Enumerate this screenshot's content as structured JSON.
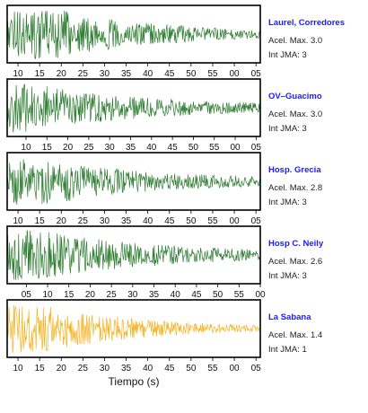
{
  "chart_data": [
    {
      "type": "line",
      "station": "Laurel, Corredores",
      "peak_label": "Acel. Max. 3.0",
      "jma_label": "Int JMA: 3",
      "color": "#2e7d32",
      "ticks": [
        "10",
        "15",
        "20",
        "25",
        "30",
        "35",
        "40",
        "45",
        "50",
        "55",
        "00",
        "05"
      ],
      "tick_values": [
        10,
        15,
        20,
        25,
        30,
        35,
        40,
        45,
        50,
        55,
        60,
        65
      ],
      "xlim": [
        7.5,
        66
      ],
      "amp_decay": [
        1.0,
        0.9,
        0.55,
        0.32,
        0.18
      ]
    },
    {
      "type": "line",
      "station": "OV–Guacimo",
      "peak_label": "Acel. Max. 3.0",
      "jma_label": "Int JMA: 3",
      "color": "#2e7d32",
      "ticks": [
        "10",
        "15",
        "20",
        "25",
        "30",
        "35",
        "40",
        "45",
        "50",
        "55",
        "00",
        "05"
      ],
      "tick_values": [
        10,
        15,
        20,
        25,
        30,
        35,
        40,
        45,
        50,
        55,
        60,
        65
      ],
      "xlim": [
        5.5,
        66
      ],
      "amp_decay": [
        1.0,
        0.75,
        0.5,
        0.32,
        0.22
      ]
    },
    {
      "type": "line",
      "station": "Hosp. Grecia",
      "peak_label": "Acel. Max. 2.8",
      "jma_label": "Int JMA: 3",
      "color": "#2e7d32",
      "ticks": [
        "10",
        "15",
        "20",
        "25",
        "30",
        "35",
        "40",
        "45",
        "50",
        "55",
        "00",
        "05"
      ],
      "tick_values": [
        10,
        15,
        20,
        25,
        30,
        35,
        40,
        45,
        50,
        55,
        60,
        65
      ],
      "xlim": [
        7.5,
        66
      ],
      "amp_decay": [
        1.0,
        0.78,
        0.5,
        0.33,
        0.22
      ]
    },
    {
      "type": "line",
      "station": "Hosp C. Neily",
      "peak_label": "Acel. Max. 2.6",
      "jma_label": "Int JMA: 3",
      "color": "#2e7d32",
      "ticks": [
        "05",
        "10",
        "15",
        "20",
        "25",
        "30",
        "35",
        "40",
        "45",
        "50",
        "55",
        "00"
      ],
      "tick_values": [
        5,
        10,
        15,
        20,
        25,
        30,
        35,
        40,
        45,
        50,
        55,
        60
      ],
      "xlim": [
        0.5,
        60
      ],
      "amp_decay": [
        1.0,
        0.85,
        0.55,
        0.35,
        0.25
      ]
    },
    {
      "type": "line",
      "station": "La Sabana",
      "peak_label": "Acel. Max. 1.4",
      "jma_label": "Int JMA: 1",
      "color": "#f5b321",
      "ticks": [
        "10",
        "15",
        "20",
        "25",
        "30",
        "35",
        "40",
        "45",
        "50",
        "55",
        "00",
        "05"
      ],
      "tick_values": [
        10,
        15,
        20,
        25,
        30,
        35,
        40,
        45,
        50,
        55,
        60,
        65
      ],
      "xlim": [
        7.5,
        66
      ],
      "amp_decay": [
        1.0,
        0.8,
        0.45,
        0.25,
        0.15
      ],
      "xlabel": "Tiempo (s)"
    }
  ],
  "colors": {
    "station_name": "#1a1aff",
    "frame": "#000000"
  }
}
